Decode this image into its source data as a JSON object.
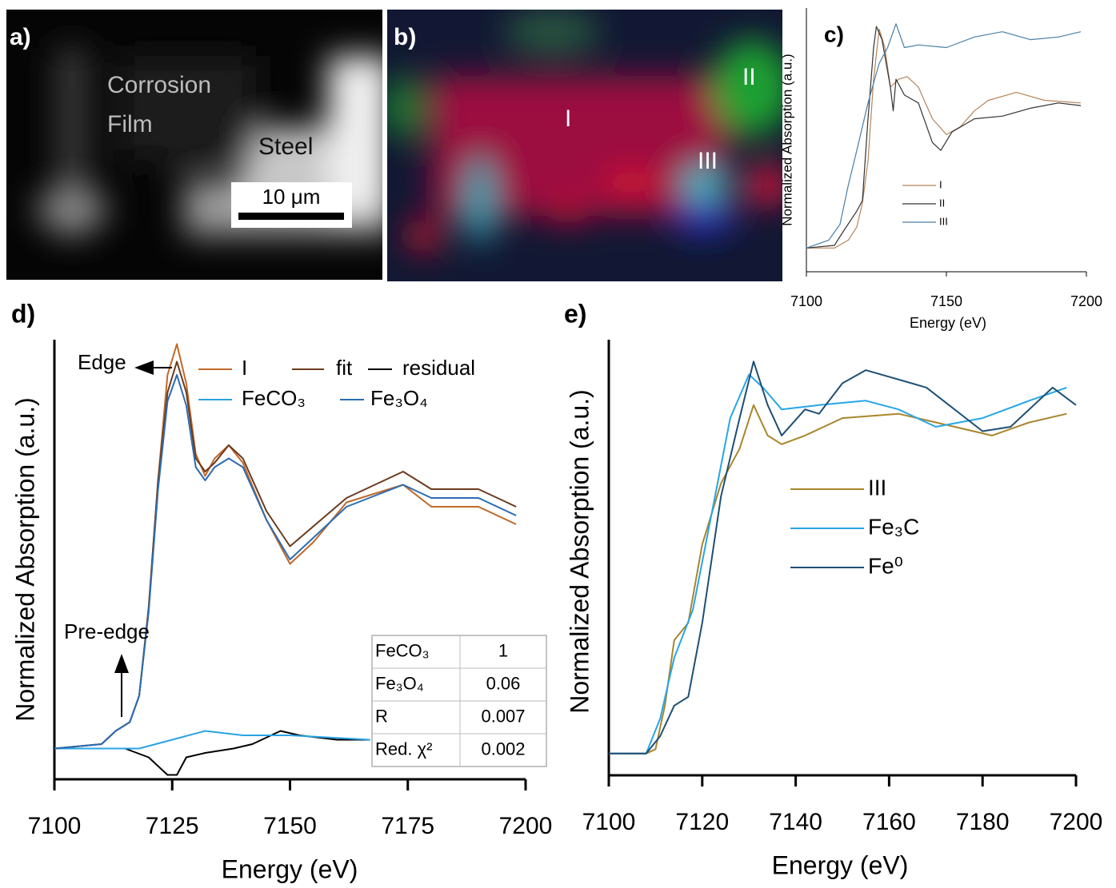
{
  "chart_data": [
    {
      "type": "line",
      "title": "c)",
      "xlabel": "Energy (eV)",
      "ylabel": "Normalized Absorption (a.u.)",
      "xlim": [
        7100,
        7200
      ],
      "xticks": [
        7100,
        7150,
        7200
      ],
      "ylim": [
        0,
        1
      ],
      "series": [
        {
          "name": "I",
          "color": "#b5855a",
          "x": [
            7100,
            7110,
            7115,
            7118,
            7120,
            7122,
            7124,
            7126,
            7128,
            7130,
            7133,
            7136,
            7140,
            7145,
            7150,
            7155,
            7160,
            7165,
            7175,
            7185,
            7198
          ],
          "values": [
            0.09,
            0.09,
            0.12,
            0.17,
            0.26,
            0.42,
            0.73,
            0.92,
            0.85,
            0.7,
            0.73,
            0.74,
            0.7,
            0.58,
            0.52,
            0.55,
            0.61,
            0.65,
            0.68,
            0.65,
            0.64
          ]
        },
        {
          "name": "II",
          "color": "#333333",
          "x": [
            7100,
            7110,
            7113,
            7118,
            7120,
            7122,
            7124,
            7125,
            7127,
            7130,
            7131,
            7132,
            7135,
            7140,
            7145,
            7148,
            7152,
            7160,
            7170,
            7180,
            7190,
            7198
          ],
          "values": [
            0.09,
            0.1,
            0.15,
            0.23,
            0.27,
            0.58,
            0.85,
            0.93,
            0.88,
            0.7,
            0.61,
            0.73,
            0.67,
            0.64,
            0.49,
            0.46,
            0.53,
            0.58,
            0.59,
            0.62,
            0.64,
            0.63
          ]
        },
        {
          "name": "III",
          "color": "#4a7fa8",
          "x": [
            7100,
            7108,
            7112,
            7115,
            7118,
            7122,
            7126,
            7129,
            7132,
            7135,
            7140,
            7150,
            7160,
            7170,
            7180,
            7190,
            7198
          ],
          "values": [
            0.09,
            0.12,
            0.18,
            0.33,
            0.46,
            0.64,
            0.79,
            0.85,
            0.94,
            0.85,
            0.86,
            0.85,
            0.89,
            0.91,
            0.88,
            0.89,
            0.91
          ]
        }
      ]
    },
    {
      "type": "line",
      "title": "d)",
      "xlabel": "Energy (eV)",
      "ylabel": "Normalized Absorption (a.u.)",
      "xlim": [
        7100,
        7200
      ],
      "xticks": [
        7100,
        7125,
        7150,
        7175,
        7200
      ],
      "ylim": [
        0,
        1
      ],
      "series": [
        {
          "name": "I",
          "color": "#c0692a",
          "x": [
            7100,
            7110,
            7113,
            7116,
            7118,
            7120,
            7122,
            7124,
            7126,
            7128,
            7130,
            7132,
            7134,
            7137,
            7140,
            7145,
            7150,
            7155,
            7162,
            7174,
            7180,
            7190,
            7198
          ],
          "values": [
            0.07,
            0.08,
            0.11,
            0.13,
            0.19,
            0.39,
            0.68,
            0.92,
            0.99,
            0.9,
            0.74,
            0.69,
            0.73,
            0.76,
            0.72,
            0.59,
            0.49,
            0.54,
            0.63,
            0.67,
            0.62,
            0.62,
            0.58
          ]
        },
        {
          "name": "fit",
          "color": "#6b3b1e",
          "x": [
            7100,
            7110,
            7113,
            7116,
            7118,
            7120,
            7122,
            7124,
            7126,
            7128,
            7130,
            7132,
            7134,
            7137,
            7140,
            7145,
            7150,
            7162,
            7174,
            7180,
            7190,
            7198
          ],
          "values": [
            0.07,
            0.08,
            0.11,
            0.13,
            0.19,
            0.39,
            0.68,
            0.88,
            0.95,
            0.88,
            0.73,
            0.7,
            0.72,
            0.76,
            0.73,
            0.61,
            0.53,
            0.64,
            0.7,
            0.66,
            0.66,
            0.62
          ]
        },
        {
          "name": "residual",
          "color": "#000000",
          "x": [
            7100,
            7115,
            7120,
            7124,
            7126,
            7128,
            7132,
            7138,
            7142,
            7146,
            7148,
            7152,
            7160,
            7167
          ],
          "values": [
            0.07,
            0.07,
            0.05,
            0.01,
            0.01,
            0.05,
            0.06,
            0.07,
            0.08,
            0.1,
            0.11,
            0.1,
            0.09,
            0.09
          ]
        },
        {
          "name": "FeCO₃",
          "color": "#29a3e3",
          "x": [
            7100,
            7118,
            7125,
            7132,
            7140,
            7150,
            7167
          ],
          "values": [
            0.07,
            0.07,
            0.09,
            0.11,
            0.1,
            0.1,
            0.09
          ]
        },
        {
          "name": "Fe₃O₄",
          "color": "#2b6cb3",
          "x": [
            7100,
            7110,
            7113,
            7116,
            7118,
            7120,
            7122,
            7124,
            7126,
            7128,
            7130,
            7132,
            7134,
            7137,
            7140,
            7145,
            7150,
            7162,
            7174,
            7180,
            7190,
            7198
          ],
          "values": [
            0.07,
            0.08,
            0.11,
            0.13,
            0.19,
            0.38,
            0.66,
            0.86,
            0.92,
            0.85,
            0.71,
            0.68,
            0.71,
            0.73,
            0.71,
            0.59,
            0.5,
            0.62,
            0.67,
            0.64,
            0.64,
            0.6
          ]
        }
      ],
      "annotations": [
        "Edge",
        "Pre-edge"
      ],
      "table": {
        "rows": [
          [
            "FeCO₃",
            1
          ],
          [
            "Fe₃O₄",
            0.06
          ],
          [
            "R",
            0.007
          ],
          [
            "Red. χ²",
            0.002
          ]
        ]
      }
    },
    {
      "type": "line",
      "title": "e)",
      "xlabel": "Energy (eV)",
      "ylabel": "Normalized Absorption (a.u.)",
      "xlim": [
        7100,
        7200
      ],
      "xticks": [
        7100,
        7120,
        7140,
        7160,
        7180,
        7200
      ],
      "ylim": [
        0,
        1
      ],
      "series": [
        {
          "name": "III",
          "color": "#a8862c",
          "x": [
            7100,
            7108,
            7110,
            7112,
            7114,
            7117,
            7120,
            7124,
            7128,
            7131,
            7134,
            7137,
            7142,
            7150,
            7162,
            7170,
            7182,
            7190,
            7198
          ],
          "values": [
            0.05,
            0.05,
            0.06,
            0.16,
            0.31,
            0.35,
            0.53,
            0.67,
            0.75,
            0.85,
            0.78,
            0.76,
            0.78,
            0.82,
            0.83,
            0.81,
            0.78,
            0.81,
            0.83
          ]
        },
        {
          "name": "Fe₃C",
          "color": "#27a6e6",
          "x": [
            7100,
            7108,
            7111,
            7114,
            7118,
            7122,
            7126,
            7130,
            7133,
            7137,
            7145,
            7155,
            7162,
            7170,
            7180,
            7190,
            7198
          ],
          "values": [
            0.05,
            0.05,
            0.13,
            0.27,
            0.38,
            0.6,
            0.82,
            0.92,
            0.89,
            0.84,
            0.85,
            0.86,
            0.84,
            0.8,
            0.82,
            0.86,
            0.89
          ]
        },
        {
          "name": "Fe⁰",
          "color": "#1e4f74",
          "x": [
            7100,
            7108,
            7111,
            7114,
            7117,
            7120,
            7124,
            7128,
            7131,
            7134,
            7137,
            7142,
            7145,
            7150,
            7155,
            7168,
            7180,
            7186,
            7195,
            7200
          ],
          "values": [
            0.05,
            0.05,
            0.09,
            0.16,
            0.18,
            0.35,
            0.64,
            0.82,
            0.95,
            0.85,
            0.78,
            0.84,
            0.83,
            0.9,
            0.93,
            0.89,
            0.79,
            0.8,
            0.89,
            0.85
          ]
        }
      ]
    }
  ],
  "images": [
    {
      "label": "a)",
      "texts": [
        "Corrosion",
        "Film",
        "Steel"
      ],
      "scale_bar": "10 μm"
    },
    {
      "label": "b)",
      "regions": [
        "I",
        "II",
        "III"
      ]
    }
  ]
}
